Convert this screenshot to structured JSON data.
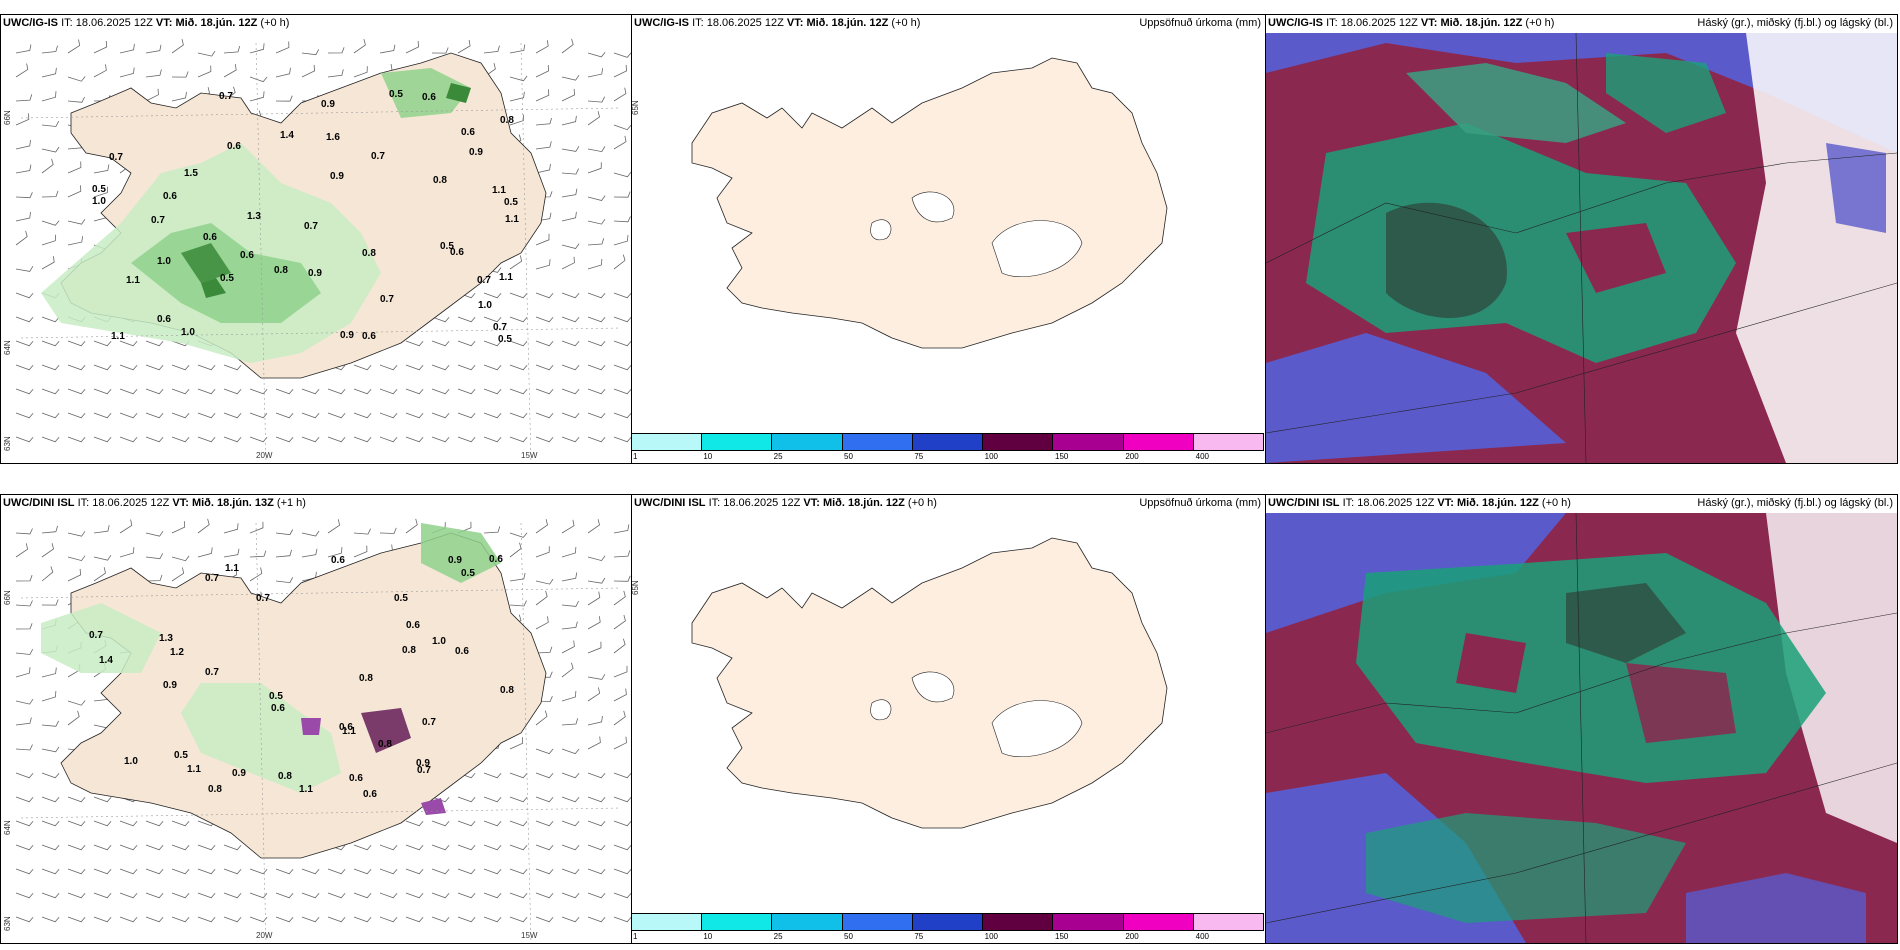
{
  "rows": [
    {
      "left": {
        "model": "UWC/IG-IS",
        "it_label": "IT:",
        "it_value": "18.06.2025 12Z",
        "vt_label": "VT:",
        "vt_value": "Mið. 18.jún. 12Z",
        "offset": "(+0 h)",
        "lat_labels": [
          "66N",
          "64N",
          "63N"
        ],
        "lon_labels": [
          "20W",
          "15W"
        ],
        "precip_labels": [
          "0.6",
          "1.1",
          "0.7",
          "0.5",
          "1.3",
          "1.1",
          "0.6",
          "0.5",
          "0.7",
          "0.6",
          "1.5",
          "0.6",
          "0.8",
          "0.5",
          "1.1",
          "0.7",
          "0.6",
          "0.5",
          "0.7",
          "1.4",
          "0.7",
          "1.6",
          "0.6",
          "1.0",
          "0.9",
          "0.6",
          "1.1",
          "0.7",
          "0.9",
          "0.8",
          "1.0",
          "0.5",
          "0.7",
          "0.9",
          "0.6",
          "1.0",
          "1.1",
          "0.8",
          "0.9",
          "0.5",
          "0.6",
          "0.7",
          "0.8",
          "0.9",
          "1.0"
        ]
      },
      "middle": {
        "model": "UWC/IG-IS",
        "it_label": "IT:",
        "it_value": "18.06.2025 12Z",
        "vt_label": "VT:",
        "vt_value": "Mið. 18.jún. 12Z",
        "offset": "(+0 h)",
        "right_title": "Uppsöfnuð úrkoma (mm)",
        "lat_label": "65N",
        "colorbar_ticks": [
          "1",
          "10",
          "25",
          "50",
          "75",
          "100",
          "150",
          "200",
          "400"
        ]
      },
      "right": {
        "model": "UWC/IG-IS",
        "it_label": "IT:",
        "it_value": "18.06.2025 12Z",
        "vt_label": "VT:",
        "vt_value": "Mið. 18.jún. 12Z",
        "offset": "(+0 h)",
        "right_title": "Háský (gr.), miðský (fj.bl.) og lágský (bl.)"
      }
    },
    {
      "left": {
        "model": "UWC/DINI ISL",
        "it_label": "IT:",
        "it_value": "18.06.2025 12Z",
        "vt_label": "VT:",
        "vt_value": "Mið. 18.jún. 13Z",
        "offset": "(+1 h)",
        "lat_labels": [
          "66N",
          "64N",
          "63N"
        ],
        "lon_labels": [
          "20W",
          "15W"
        ],
        "precip_labels": [
          "0.6",
          "0.7",
          "0.5",
          "1.3",
          "1.0",
          "0.6",
          "0.8",
          "0.7",
          "0.6",
          "1.1",
          "1.0",
          "0.7",
          "0.5",
          "0.6",
          "0.8",
          "0.9",
          "1.4",
          "0.5",
          "0.7",
          "0.6",
          "0.9",
          "1.1",
          "0.8",
          "0.7",
          "0.8",
          "0.6",
          "0.9",
          "1.2",
          "1.1",
          "0.7",
          "0.8",
          "0.6",
          "0.5",
          "0.9",
          "1.1",
          "0.8",
          "0.6"
        ]
      },
      "middle": {
        "model": "UWC/DINI ISL",
        "it_label": "IT:",
        "it_value": "18.06.2025 12Z",
        "vt_label": "VT:",
        "vt_value": "Mið. 18.jún. 12Z",
        "offset": "(+0 h)",
        "right_title": "Uppsöfnuð úrkoma (mm)",
        "lat_label": "65N",
        "colorbar_ticks": [
          "1",
          "10",
          "25",
          "50",
          "75",
          "100",
          "150",
          "200",
          "400"
        ]
      },
      "right": {
        "model": "UWC/DINI ISL",
        "it_label": "IT:",
        "it_value": "18.06.2025 12Z",
        "vt_label": "VT:",
        "vt_value": "Mið. 18.jún. 12Z",
        "offset": "(+0 h)",
        "right_title": "Háský (gr.), miðský (fj.bl.) og lágský (bl.)"
      }
    }
  ],
  "colors": {
    "land": "#f5e6d6",
    "land_mid": "#fdeee0",
    "precip_light": "#c8ecc4",
    "precip_mid": "#8fd18b",
    "precip_dark": "#3a8a3a",
    "cloud_high": "#1aa078",
    "cloud_mid": "#8b2850",
    "cloud_low": "#5a5acb",
    "colorbar": [
      "#b8f8f8",
      "#10e8e8",
      "#10c0e8",
      "#3070f0",
      "#2040c8",
      "#600040",
      "#a80090",
      "#f000c0",
      "#f8b8f0"
    ]
  }
}
